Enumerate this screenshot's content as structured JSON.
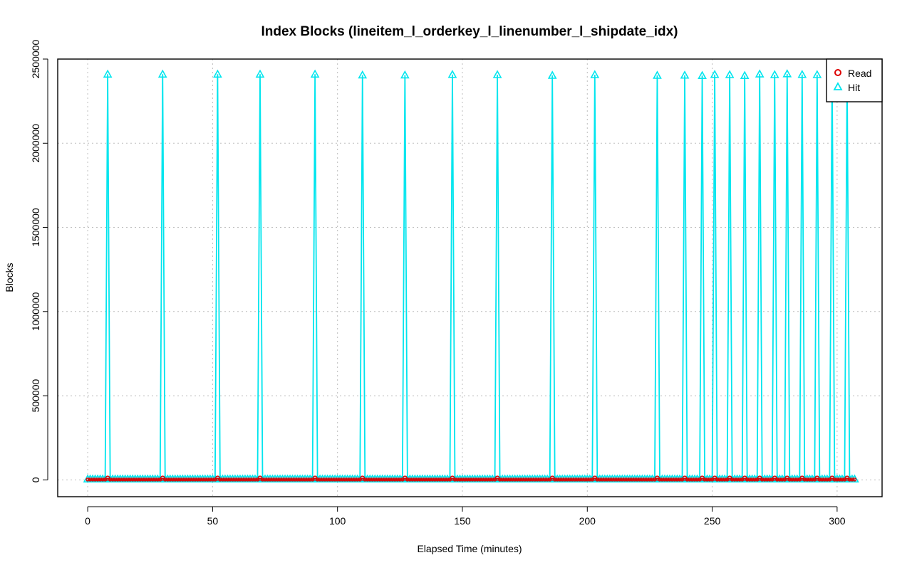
{
  "chart_data": {
    "type": "line",
    "title": "Index Blocks (lineitem_l_orderkey_l_linenumber_l_shipdate_idx)",
    "xlabel": "Elapsed Time (minutes)",
    "ylabel": "Blocks",
    "xlim": [
      -12,
      318
    ],
    "ylim": [
      -100000,
      2500000
    ],
    "x_ticks": [
      0,
      50,
      100,
      150,
      200,
      250,
      300
    ],
    "y_ticks": [
      0,
      500000,
      1000000,
      1500000,
      2000000,
      2500000
    ],
    "x_tick_labels": [
      "0",
      "50",
      "100",
      "150",
      "200",
      "250",
      "300"
    ],
    "y_tick_labels": [
      "0",
      "500000",
      "1000000",
      "1500000",
      "2000000",
      "2500000"
    ],
    "grid": true,
    "legend": {
      "placement": "top-right",
      "entries": [
        "Read",
        "Hit"
      ]
    },
    "x_range": [
      0,
      307
    ],
    "hit_baseline": 5000,
    "read_baseline": 2000,
    "series": [
      {
        "name": "Read",
        "color": "#dd0000",
        "marker": "circle",
        "read_spikes": [
          {
            "x": 8,
            "y": 10000
          },
          {
            "x": 30,
            "y": 10000
          },
          {
            "x": 52,
            "y": 10000
          },
          {
            "x": 69,
            "y": 10000
          },
          {
            "x": 91,
            "y": 10000
          },
          {
            "x": 110,
            "y": 10000
          },
          {
            "x": 127,
            "y": 10000
          },
          {
            "x": 146,
            "y": 10000
          },
          {
            "x": 164,
            "y": 10000
          },
          {
            "x": 186,
            "y": 10000
          },
          {
            "x": 203,
            "y": 10000
          },
          {
            "x": 228,
            "y": 10000
          },
          {
            "x": 239,
            "y": 10000
          },
          {
            "x": 246,
            "y": 10000
          },
          {
            "x": 251,
            "y": 10000
          },
          {
            "x": 257,
            "y": 10000
          },
          {
            "x": 263,
            "y": 10000
          },
          {
            "x": 269,
            "y": 10000
          },
          {
            "x": 275,
            "y": 10000
          },
          {
            "x": 280,
            "y": 10000
          },
          {
            "x": 286,
            "y": 10000
          },
          {
            "x": 292,
            "y": 10000
          },
          {
            "x": 298,
            "y": 10000
          },
          {
            "x": 304,
            "y": 10000
          }
        ]
      },
      {
        "name": "Hit",
        "color": "#00e5ee",
        "marker": "triangle",
        "hit_spikes": [
          {
            "x": 8,
            "y": 2410000
          },
          {
            "x": 30,
            "y": 2410000
          },
          {
            "x": 52,
            "y": 2410000
          },
          {
            "x": 69,
            "y": 2410000
          },
          {
            "x": 91,
            "y": 2410000
          },
          {
            "x": 110,
            "y": 2405000
          },
          {
            "x": 127,
            "y": 2405000
          },
          {
            "x": 146,
            "y": 2408000
          },
          {
            "x": 164,
            "y": 2407000
          },
          {
            "x": 186,
            "y": 2403000
          },
          {
            "x": 203,
            "y": 2407000
          },
          {
            "x": 228,
            "y": 2403000
          },
          {
            "x": 239,
            "y": 2404000
          },
          {
            "x": 246,
            "y": 2402000
          },
          {
            "x": 251,
            "y": 2408000
          },
          {
            "x": 257,
            "y": 2407000
          },
          {
            "x": 263,
            "y": 2402000
          },
          {
            "x": 269,
            "y": 2411000
          },
          {
            "x": 275,
            "y": 2407000
          },
          {
            "x": 280,
            "y": 2412000
          },
          {
            "x": 286,
            "y": 2408000
          },
          {
            "x": 292,
            "y": 2407000
          },
          {
            "x": 298,
            "y": 2407000
          },
          {
            "x": 304,
            "y": 2405000
          }
        ]
      }
    ]
  }
}
